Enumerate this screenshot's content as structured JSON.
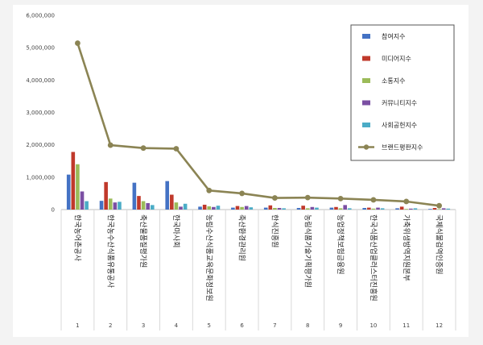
{
  "chart_data": {
    "type": "bar",
    "categories": [
      "한국농어촌공사",
      "한국농수산식품유통공사",
      "축산물품질평가원",
      "한국마사회",
      "농림수산식품교육문화정보원",
      "축산환경관리원",
      "한식진흥원",
      "농림식품기술기획평가원",
      "농업정책보험금융원",
      "한국식품산업클러스터진흥원",
      "가축위생방역지원본부",
      "국제식물검역인증원"
    ],
    "rank_labels": [
      "1",
      "2",
      "3",
      "4",
      "5",
      "6",
      "7",
      "8",
      "9",
      "10",
      "11",
      "12"
    ],
    "series": [
      {
        "name": "참여지수",
        "kind": "bar",
        "color": "#4472c4",
        "values": [
          1080000,
          270000,
          830000,
          880000,
          90000,
          60000,
          60000,
          50000,
          60000,
          50000,
          40000,
          20000
        ]
      },
      {
        "name": "미디어지수",
        "kind": "bar",
        "color": "#c0392b",
        "values": [
          1780000,
          850000,
          420000,
          460000,
          150000,
          110000,
          130000,
          120000,
          80000,
          60000,
          90000,
          50000
        ]
      },
      {
        "name": "소통지수",
        "kind": "bar",
        "color": "#9bbb59",
        "values": [
          1400000,
          340000,
          260000,
          220000,
          100000,
          80000,
          50000,
          40000,
          40000,
          30000,
          20000,
          15000
        ]
      },
      {
        "name": "커뮤니티지수",
        "kind": "bar",
        "color": "#7b4fa3",
        "values": [
          560000,
          220000,
          200000,
          90000,
          80000,
          110000,
          50000,
          80000,
          140000,
          60000,
          30000,
          40000
        ]
      },
      {
        "name": "사회공헌지수",
        "kind": "bar",
        "color": "#4bacc6",
        "values": [
          260000,
          240000,
          140000,
          180000,
          120000,
          70000,
          40000,
          60000,
          40000,
          40000,
          40000,
          30000
        ]
      },
      {
        "name": "브랜드평판지수",
        "kind": "line",
        "color": "#8b8454",
        "values": [
          5140000,
          1990000,
          1900000,
          1880000,
          590000,
          500000,
          360000,
          370000,
          340000,
          300000,
          250000,
          120000
        ]
      }
    ],
    "yticks": [
      "0",
      "1,000,000",
      "2,000,000",
      "3,000,000",
      "4,000,000",
      "5,000,000",
      "6,000,000"
    ],
    "ylim": [
      0,
      6000000
    ],
    "legend_position": "right",
    "grid": false
  }
}
